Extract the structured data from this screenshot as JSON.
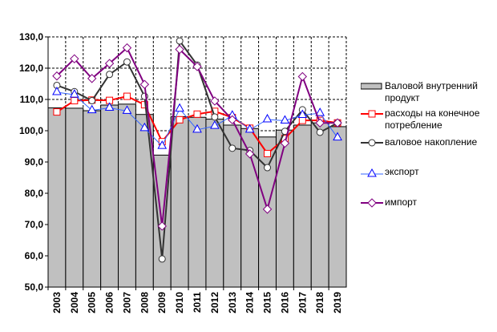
{
  "chart_data": {
    "type": "bar+line",
    "categories": [
      "2003",
      "2004",
      "2005",
      "2006",
      "2007",
      "2008",
      "2009",
      "2010",
      "2011",
      "2012",
      "2013",
      "2014",
      "2015",
      "2016",
      "2017",
      "2018",
      "2019"
    ],
    "ylim": [
      50,
      130
    ],
    "yticks": [
      "50,0",
      "60,0",
      "70,0",
      "80,0",
      "90,0",
      "100,0",
      "110,0",
      "120,0",
      "130,0"
    ],
    "grid": true,
    "legend_position": "right",
    "series": [
      {
        "name": "Валовой внутренний продукт",
        "kind": "bar",
        "color": "#c0c0c0",
        "values": [
          107.3,
          107.2,
          106.4,
          108.2,
          108.5,
          105.2,
          92.2,
          104.5,
          104.3,
          103.7,
          101.8,
          100.7,
          98.0,
          100.2,
          101.8,
          102.5,
          101.3
        ]
      },
      {
        "name": "расходы на конечное потребление",
        "kind": "line",
        "marker": "square",
        "color": "#ff0000",
        "values": [
          106.0,
          109.6,
          109.8,
          109.7,
          111.0,
          108.3,
          96.5,
          103.5,
          105.3,
          106.2,
          104.2,
          100.8,
          92.7,
          97.5,
          103.3,
          103.3,
          102.5
        ]
      },
      {
        "name": "валовое накопление",
        "kind": "line",
        "marker": "circle",
        "color": "#333333",
        "values": [
          114.5,
          112.5,
          109.6,
          118.0,
          122.0,
          111.0,
          59.0,
          128.7,
          121.0,
          104.4,
          94.4,
          93.7,
          88.2,
          99.8,
          106.7,
          99.5,
          102.5
        ]
      },
      {
        "name": "экспорт",
        "kind": "line",
        "marker": "triangle",
        "color": "#3366ff",
        "values": [
          112.3,
          111.5,
          106.5,
          107.3,
          106.3,
          100.8,
          95.1,
          107.0,
          100.3,
          101.5,
          104.8,
          100.3,
          103.6,
          103.2,
          105.0,
          105.6,
          97.8
        ]
      },
      {
        "name": "импорт",
        "kind": "line",
        "marker": "diamond",
        "color": "#800080",
        "values": [
          117.5,
          123.0,
          116.7,
          121.5,
          126.5,
          114.8,
          69.5,
          126.0,
          120.5,
          109.5,
          103.5,
          92.6,
          74.9,
          96.0,
          117.3,
          102.5,
          102.5
        ]
      }
    ]
  }
}
